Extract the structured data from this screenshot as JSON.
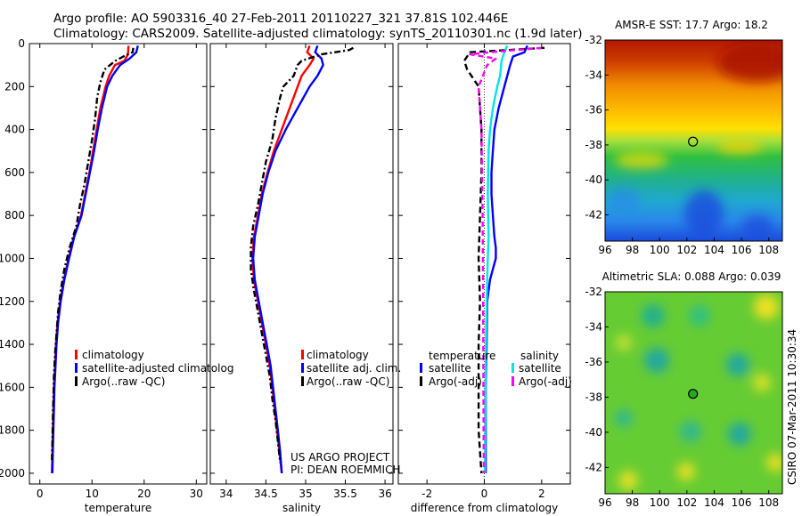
{
  "header": {
    "line1": "Argo profile: AO 5903316_40 27-Feb-2011 20110227_321 37.81S 102.446E",
    "line2": "Climatology: CARS2009. Satellite-adjusted climatology: synTS_20110301.nc (1.9d later)"
  },
  "footer": {
    "project": "US ARGO PROJECT",
    "pi": "PI: DEAN ROEMMICH",
    "credit": "CSIRO 07-Mar-2011 10:30:34"
  },
  "colors": {
    "climatology": "#ff0000",
    "satellite": "#0000ff",
    "argo": "#000000",
    "sal_satellite": "#00e5e5",
    "sal_argo": "#ff00ff"
  },
  "chart_data": [
    {
      "type": "line",
      "id": "temperature",
      "xlabel": "temperature",
      "xlim": [
        -2,
        32
      ],
      "ylim": [
        0,
        2050
      ],
      "xticks": [
        0,
        10,
        20,
        30
      ],
      "yticks": [
        0,
        200,
        400,
        600,
        800,
        1000,
        1200,
        1400,
        1600,
        1800,
        2000
      ],
      "legend": [
        "climatology",
        "satellite-adjusted climatolog",
        "Argo(..raw -QC)"
      ],
      "series": [
        {
          "name": "climatology",
          "color": "#ff0000",
          "dash": "",
          "points": [
            [
              17.0,
              10
            ],
            [
              16.9,
              50
            ],
            [
              16.2,
              80
            ],
            [
              14.4,
              100
            ],
            [
              13.3,
              150
            ],
            [
              12.6,
              200
            ],
            [
              11.6,
              300
            ],
            [
              10.9,
              400
            ],
            [
              10.2,
              500
            ],
            [
              9.5,
              600
            ],
            [
              8.7,
              700
            ],
            [
              7.9,
              800
            ],
            [
              6.5,
              900
            ],
            [
              5.5,
              1000
            ],
            [
              4.6,
              1100
            ],
            [
              3.9,
              1200
            ],
            [
              3.4,
              1300
            ],
            [
              3.1,
              1400
            ],
            [
              2.9,
              1500
            ],
            [
              2.7,
              1600
            ],
            [
              2.6,
              1700
            ],
            [
              2.5,
              1800
            ],
            [
              2.4,
              1900
            ],
            [
              2.3,
              2000
            ]
          ]
        },
        {
          "name": "satellite-adjusted climatology",
          "color": "#0000ff",
          "dash": "",
          "points": [
            [
              18.8,
              10
            ],
            [
              18.5,
              40
            ],
            [
              17.2,
              70
            ],
            [
              15.4,
              100
            ],
            [
              13.9,
              150
            ],
            [
              12.9,
              200
            ],
            [
              11.9,
              300
            ],
            [
              11.1,
              400
            ],
            [
              10.4,
              500
            ],
            [
              9.6,
              600
            ],
            [
              8.8,
              700
            ],
            [
              8.0,
              800
            ],
            [
              6.6,
              900
            ],
            [
              5.6,
              1000
            ],
            [
              4.7,
              1100
            ],
            [
              4.0,
              1200
            ],
            [
              3.5,
              1300
            ],
            [
              3.2,
              1400
            ],
            [
              3.0,
              1500
            ],
            [
              2.8,
              1600
            ],
            [
              2.7,
              1700
            ],
            [
              2.6,
              1800
            ],
            [
              2.5,
              1900
            ],
            [
              2.4,
              2000
            ]
          ]
        },
        {
          "name": "Argo(..raw -QC)",
          "color": "#000000",
          "dash": "7,3,2,3",
          "points": [
            [
              17.9,
              20
            ],
            [
              17.8,
              40
            ],
            [
              16.0,
              60
            ],
            [
              14.5,
              80
            ],
            [
              12.4,
              120
            ],
            [
              11.6,
              180
            ],
            [
              11.0,
              250
            ],
            [
              10.6,
              350
            ],
            [
              10.0,
              450
            ],
            [
              9.3,
              550
            ],
            [
              8.6,
              650
            ],
            [
              7.7,
              750
            ],
            [
              7.0,
              850
            ],
            [
              5.7,
              950
            ],
            [
              4.7,
              1050
            ],
            [
              4.0,
              1150
            ],
            [
              3.5,
              1250
            ],
            [
              3.2,
              1350
            ],
            [
              2.9,
              1450
            ],
            [
              2.7,
              1550
            ],
            [
              2.6,
              1650
            ],
            [
              2.5,
              1750
            ],
            [
              2.4,
              1850
            ],
            [
              2.3,
              1950
            ]
          ]
        }
      ]
    },
    {
      "type": "line",
      "id": "salinity",
      "xlabel": "salinity",
      "xlim": [
        33.8,
        36.1
      ],
      "ylim": [
        0,
        2050
      ],
      "xticks": [
        34,
        34.5,
        35,
        35.5,
        36
      ],
      "yticks": [
        0,
        200,
        400,
        600,
        800,
        1000,
        1200,
        1400,
        1600,
        1800,
        2000
      ],
      "legend": [
        "climatology",
        "satellite adj. clim.",
        "Argo(..raw -QC)"
      ],
      "series": [
        {
          "name": "climatology",
          "color": "#ff0000",
          "dash": "",
          "points": [
            [
              35.05,
              10
            ],
            [
              35.02,
              40
            ],
            [
              35.1,
              70
            ],
            [
              35.05,
              100
            ],
            [
              34.95,
              150
            ],
            [
              34.9,
              200
            ],
            [
              34.8,
              300
            ],
            [
              34.7,
              400
            ],
            [
              34.6,
              500
            ],
            [
              34.52,
              600
            ],
            [
              34.45,
              700
            ],
            [
              34.4,
              800
            ],
            [
              34.35,
              900
            ],
            [
              34.33,
              1000
            ],
            [
              34.35,
              1100
            ],
            [
              34.4,
              1200
            ],
            [
              34.45,
              1300
            ],
            [
              34.5,
              1400
            ],
            [
              34.55,
              1500
            ],
            [
              34.58,
              1600
            ],
            [
              34.61,
              1700
            ],
            [
              34.64,
              1800
            ],
            [
              34.67,
              1900
            ],
            [
              34.7,
              2000
            ]
          ]
        },
        {
          "name": "satellite adj. clim.",
          "color": "#0000ff",
          "dash": "",
          "points": [
            [
              35.15,
              10
            ],
            [
              35.12,
              40
            ],
            [
              35.2,
              70
            ],
            [
              35.22,
              100
            ],
            [
              35.15,
              150
            ],
            [
              35.05,
              200
            ],
            [
              34.9,
              300
            ],
            [
              34.75,
              400
            ],
            [
              34.62,
              500
            ],
            [
              34.53,
              600
            ],
            [
              34.46,
              700
            ],
            [
              34.41,
              800
            ],
            [
              34.36,
              900
            ],
            [
              34.34,
              1000
            ],
            [
              34.36,
              1100
            ],
            [
              34.41,
              1200
            ],
            [
              34.46,
              1300
            ],
            [
              34.51,
              1400
            ],
            [
              34.56,
              1500
            ],
            [
              34.59,
              1600
            ],
            [
              34.62,
              1700
            ],
            [
              34.65,
              1800
            ],
            [
              34.68,
              1900
            ],
            [
              34.7,
              2000
            ]
          ]
        },
        {
          "name": "Argo(..raw -QC)",
          "color": "#000000",
          "dash": "7,3,2,3",
          "points": [
            [
              35.6,
              20
            ],
            [
              35.55,
              30
            ],
            [
              35.2,
              50
            ],
            [
              34.95,
              80
            ],
            [
              34.9,
              100
            ],
            [
              34.85,
              150
            ],
            [
              34.72,
              200
            ],
            [
              34.68,
              250
            ],
            [
              34.62,
              350
            ],
            [
              34.58,
              450
            ],
            [
              34.5,
              550
            ],
            [
              34.45,
              650
            ],
            [
              34.4,
              750
            ],
            [
              34.34,
              850
            ],
            [
              34.31,
              950
            ],
            [
              34.31,
              1050
            ],
            [
              34.35,
              1150
            ],
            [
              34.4,
              1250
            ],
            [
              34.45,
              1350
            ],
            [
              34.5,
              1450
            ],
            [
              34.55,
              1550
            ],
            [
              34.58,
              1650
            ],
            [
              34.62,
              1750
            ],
            [
              34.65,
              1850
            ],
            [
              34.68,
              1950
            ]
          ]
        }
      ]
    },
    {
      "type": "line",
      "id": "difference",
      "xlabel": "difference from climatology",
      "xlim": [
        -3,
        3
      ],
      "ylim": [
        0,
        2050
      ],
      "xticks": [
        -2,
        0,
        2
      ],
      "yticks": [
        0,
        200,
        400,
        600,
        800,
        1000,
        1200,
        1400,
        1600,
        1800,
        2000
      ],
      "legend_titles": [
        "temperature",
        "salinity"
      ],
      "legend": [
        "satellite",
        "Argo(-adj)",
        "satellite",
        "Argo(-adj)"
      ],
      "series": [
        {
          "name": "temperature satellite",
          "color": "#0000ff",
          "dash": "",
          "points": [
            [
              1.5,
              10
            ],
            [
              1.4,
              40
            ],
            [
              1.0,
              60
            ],
            [
              0.9,
              100
            ],
            [
              0.7,
              200
            ],
            [
              0.5,
              300
            ],
            [
              0.35,
              400
            ],
            [
              0.3,
              500
            ],
            [
              0.25,
              600
            ],
            [
              0.25,
              700
            ],
            [
              0.3,
              800
            ],
            [
              0.35,
              900
            ],
            [
              0.4,
              950
            ],
            [
              0.4,
              1000
            ],
            [
              0.3,
              1050
            ],
            [
              0.2,
              1100
            ],
            [
              0.1,
              1200
            ],
            [
              0.08,
              1400
            ],
            [
              0.05,
              1600
            ],
            [
              0.05,
              2000
            ]
          ]
        },
        {
          "name": "temperature Argo(-adj)",
          "color": "#000000",
          "dash": "7,4",
          "points": [
            [
              2.1,
              20
            ],
            [
              -0.5,
              40
            ],
            [
              -0.7,
              80
            ],
            [
              -0.6,
              120
            ],
            [
              -0.2,
              200
            ],
            [
              -0.15,
              300
            ],
            [
              -0.1,
              400
            ],
            [
              -0.1,
              600
            ],
            [
              -0.15,
              800
            ],
            [
              -0.2,
              1000
            ],
            [
              -0.15,
              1200
            ],
            [
              -0.2,
              1400
            ],
            [
              -0.2,
              1600
            ],
            [
              -0.2,
              1800
            ],
            [
              -0.1,
              2000
            ]
          ]
        },
        {
          "name": "salinity satellite",
          "color": "#00e5e5",
          "dash": "",
          "points": [
            [
              0.8,
              10
            ],
            [
              0.7,
              40
            ],
            [
              0.6,
              80
            ],
            [
              0.55,
              150
            ],
            [
              0.45,
              200
            ],
            [
              0.3,
              300
            ],
            [
              0.2,
              400
            ],
            [
              0.15,
              500
            ],
            [
              0.12,
              700
            ],
            [
              0.15,
              900
            ],
            [
              0.12,
              1000
            ],
            [
              0.08,
              1200
            ],
            [
              0.05,
              1500
            ],
            [
              0.02,
              2000
            ]
          ]
        },
        {
          "name": "salinity Argo(-adj)",
          "color": "#ff00ff",
          "dash": "6,4",
          "points": [
            [
              2.0,
              20
            ],
            [
              0.2,
              40
            ],
            [
              -0.5,
              50
            ],
            [
              0.4,
              70
            ],
            [
              0.1,
              100
            ],
            [
              -0.2,
              200
            ],
            [
              -0.15,
              300
            ],
            [
              -0.1,
              400
            ],
            [
              -0.08,
              600
            ],
            [
              -0.06,
              800
            ],
            [
              -0.05,
              1000
            ],
            [
              -0.04,
              1200
            ],
            [
              -0.03,
              1600
            ],
            [
              -0.02,
              2000
            ]
          ]
        }
      ]
    },
    {
      "type": "heatmap",
      "id": "sst-map",
      "title": "AMSR-E SST: 17.7  Argo: 18.2",
      "xlim": [
        96,
        109
      ],
      "ylim": [
        -43.5,
        -32
      ],
      "xticks": [
        96,
        98,
        100,
        102,
        104,
        106,
        108
      ],
      "yticks": [
        -32,
        -34,
        -36,
        -38,
        -40,
        -42
      ],
      "marker": {
        "lon": 102.446,
        "lat": -37.81
      }
    },
    {
      "type": "heatmap",
      "id": "sla-map",
      "title": "Altimetric SLA: 0.088  Argo: 0.039",
      "xlim": [
        96,
        109
      ],
      "ylim": [
        -43.5,
        -32
      ],
      "xticks": [
        96,
        98,
        100,
        102,
        104,
        106,
        108
      ],
      "yticks": [
        -32,
        -34,
        -36,
        -38,
        -40,
        -42
      ],
      "marker": {
        "lon": 102.446,
        "lat": -37.81
      }
    }
  ]
}
